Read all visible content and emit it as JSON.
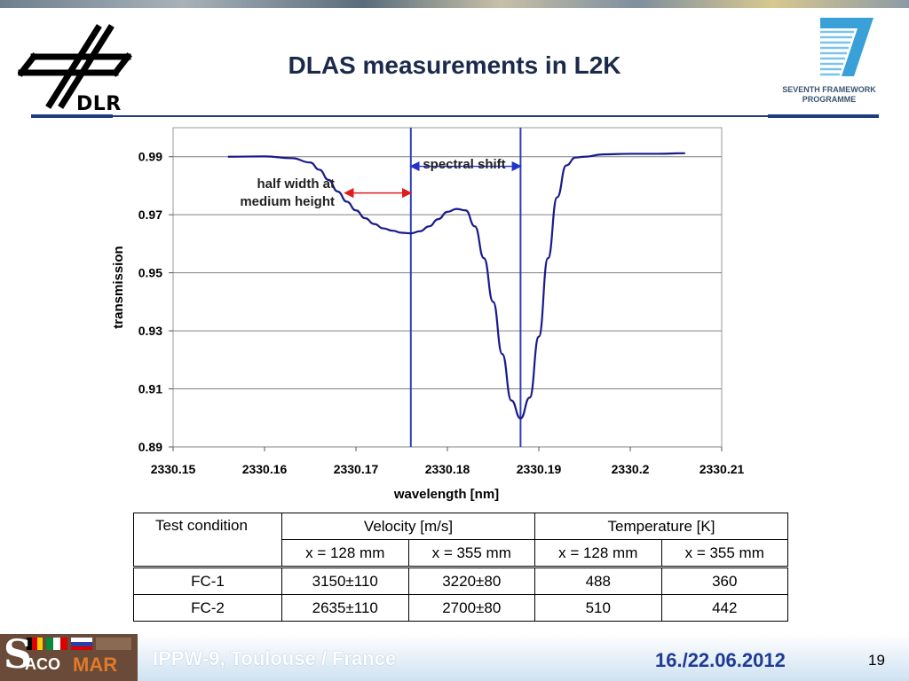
{
  "slide": {
    "title": "DLAS measurements in L2K",
    "dlr_label": "DLR",
    "fp7_label_1": "SEVENTH FRAMEWORK",
    "fp7_label_2": "PROGRAMME"
  },
  "chart_data": {
    "type": "line",
    "xlabel": "wavelength [nm]",
    "ylabel": "transmission",
    "xlim": [
      2330.15,
      2330.21
    ],
    "ylim": [
      0.89,
      1.0
    ],
    "xticks": [
      "2330.15",
      "2330.16",
      "2330.17",
      "2330.18",
      "2330.19",
      "2330.2",
      "2330.21"
    ],
    "yticks": [
      "0.99",
      "0.97",
      "0.95",
      "0.93",
      "0.91",
      "0.89"
    ],
    "grid": true,
    "series": [
      {
        "x": [
          2330.156,
          2330.16,
          2330.163,
          2330.165,
          2330.166,
          2330.167,
          2330.168,
          2330.169,
          2330.17,
          2330.171,
          2330.172,
          2330.173,
          2330.174,
          2330.175,
          2330.176,
          2330.177,
          2330.178,
          2330.179,
          2330.18,
          2330.181,
          2330.182,
          2330.183,
          2330.184,
          2330.185,
          2330.186,
          2330.187,
          2330.188,
          2330.189,
          2330.19,
          2330.191,
          2330.192,
          2330.193,
          2330.194,
          2330.195,
          2330.197,
          2330.2,
          2330.203,
          2330.206
        ],
        "y": [
          0.99,
          0.9901,
          0.9895,
          0.988,
          0.9855,
          0.982,
          0.978,
          0.9745,
          0.9715,
          0.9688,
          0.9668,
          0.9653,
          0.9645,
          0.9638,
          0.9636,
          0.9643,
          0.966,
          0.9685,
          0.971,
          0.972,
          0.9715,
          0.966,
          0.955,
          0.94,
          0.922,
          0.906,
          0.8998,
          0.907,
          0.928,
          0.955,
          0.976,
          0.987,
          0.9897,
          0.99,
          0.9908,
          0.991,
          0.991,
          0.9912
        ]
      }
    ],
    "vlines": [
      2330.176,
      2330.188
    ],
    "annotations": {
      "half_width_label_1": "half width at",
      "half_width_label_2": "medium height",
      "spectral_shift_label": "spectral shift",
      "half_width_from": 2330.1688,
      "half_width_to": 2330.176,
      "half_width_y": 0.9775,
      "shift_from": 2330.176,
      "shift_to": 2330.188,
      "shift_y": 0.9867
    },
    "colors": {
      "line": "#1a1a8c",
      "vline": "#2b3fb5",
      "half_width_arrow": "#e01b1b",
      "shift_arrow": "#2233cc",
      "grid": "#808080"
    }
  },
  "table": {
    "header_test_condition": "Test condition",
    "header_velocity": "Velocity [m/s]",
    "header_temperature": "Temperature [K]",
    "sub_v1": "x = 128 mm",
    "sub_v2": "x = 355 mm",
    "sub_t1": "x = 128 mm",
    "sub_t2": "x = 355 mm",
    "rows": [
      {
        "cond": "FC-1",
        "v1": "3150±110",
        "v2": "3220±80",
        "t1": "488",
        "t2": "360"
      },
      {
        "cond": "FC-2",
        "v1": "2635±110",
        "v2": "2700±80",
        "t1": "510",
        "t2": "442"
      }
    ]
  },
  "footer": {
    "saco_s": "S",
    "saco_aco": "ACO",
    "saco_mar": "MAR",
    "event": "IPPW-9, Toulouse / France",
    "date": "16./22.06.2012",
    "page": "19"
  }
}
